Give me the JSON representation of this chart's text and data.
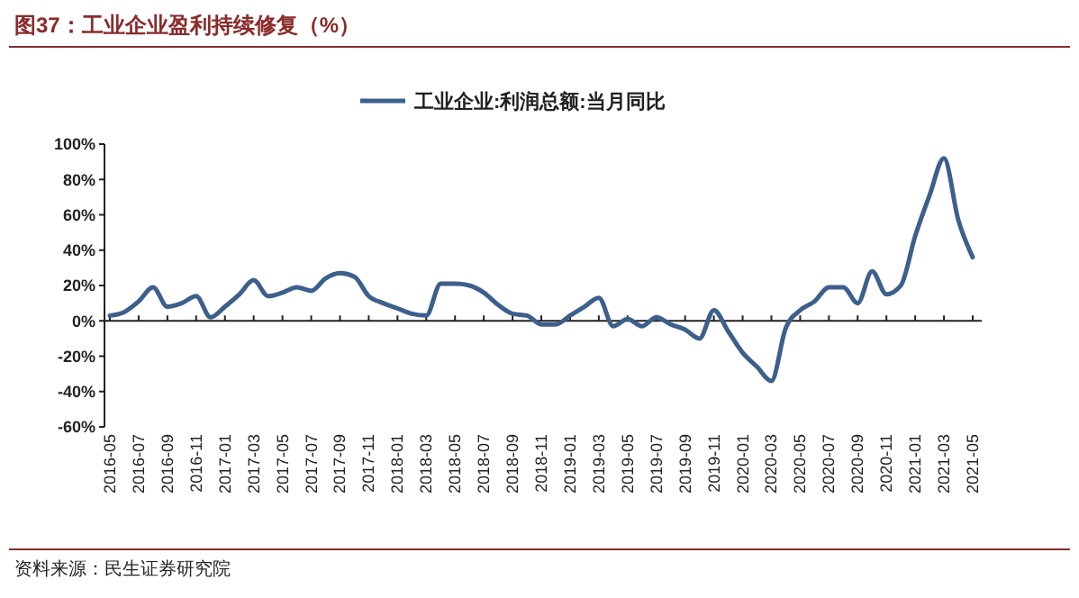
{
  "chart_data": {
    "type": "line",
    "title": "图37：工业企业盈利持续修复（%）",
    "categories": [
      "2016-05",
      null,
      "2016-07",
      null,
      "2016-09",
      null,
      "2016-11",
      null,
      "2017-01",
      null,
      "2017-03",
      null,
      "2017-05",
      null,
      "2017-07",
      null,
      "2017-09",
      null,
      "2017-11",
      null,
      "2018-01",
      null,
      "2018-03",
      null,
      "2018-05",
      null,
      "2018-07",
      null,
      "2018-09",
      null,
      "2018-11",
      null,
      "2019-01",
      null,
      "2019-03",
      null,
      "2019-05",
      null,
      "2019-07",
      null,
      "2019-09",
      null,
      "2019-11",
      null,
      "2020-01",
      null,
      "2020-03",
      null,
      "2020-05",
      null,
      "2020-07",
      null,
      "2020-09",
      null,
      "2020-11",
      null,
      "2021-01",
      null,
      "2021-03",
      null,
      "2021-05"
    ],
    "series": [
      {
        "name": "工业企业:利润总额:当月同比",
        "color": "#3d5f8c",
        "values": [
          3,
          5,
          11,
          19,
          8,
          10,
          14,
          2,
          8,
          15,
          23,
          14,
          16,
          19,
          17,
          24,
          27,
          25,
          14,
          10,
          7,
          4,
          3,
          21,
          21,
          20,
          16,
          9,
          4,
          3,
          -2,
          -2,
          3,
          8,
          13,
          -3,
          1,
          -3,
          2,
          -2,
          -5,
          -10,
          6,
          -6,
          -18,
          -26,
          -34,
          -4,
          6,
          11,
          19,
          19,
          10,
          28,
          15,
          20,
          48,
          71,
          92,
          57,
          36
        ]
      }
    ],
    "ylim": [
      -60,
      100
    ],
    "yticks": [
      {
        "value": -60,
        "label": "-60%"
      },
      {
        "value": -40,
        "label": "-40%"
      },
      {
        "value": -20,
        "label": "-20%"
      },
      {
        "value": 0,
        "label": "0%"
      },
      {
        "value": 20,
        "label": "20%"
      },
      {
        "value": 40,
        "label": "40%"
      },
      {
        "value": 60,
        "label": "60%"
      },
      {
        "value": 80,
        "label": "80%"
      },
      {
        "value": 100,
        "label": "100%"
      }
    ],
    "legend": "top",
    "marker": "none",
    "line_style": "solid",
    "annotations": [
      "资料来源：民生证券研究院"
    ]
  }
}
